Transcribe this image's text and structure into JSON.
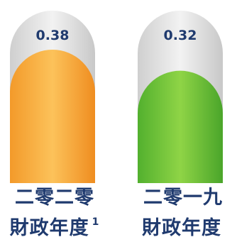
{
  "chart_data": {
    "type": "bar",
    "categories": [
      {
        "line1": "二零二零",
        "line2": "財政年度",
        "note": "1"
      },
      {
        "line1": "二零一九",
        "line2": "財政年度",
        "note": ""
      }
    ],
    "values": [
      0.38,
      0.32
    ],
    "value_labels": [
      "0.38",
      "0.32"
    ],
    "colors": {
      "bar_0": "#F7A83A",
      "bar_1": "#7AC943",
      "track": "#E6E6E6",
      "text": "#1F3A6E"
    },
    "title": "",
    "xlabel": "",
    "ylabel": ""
  }
}
